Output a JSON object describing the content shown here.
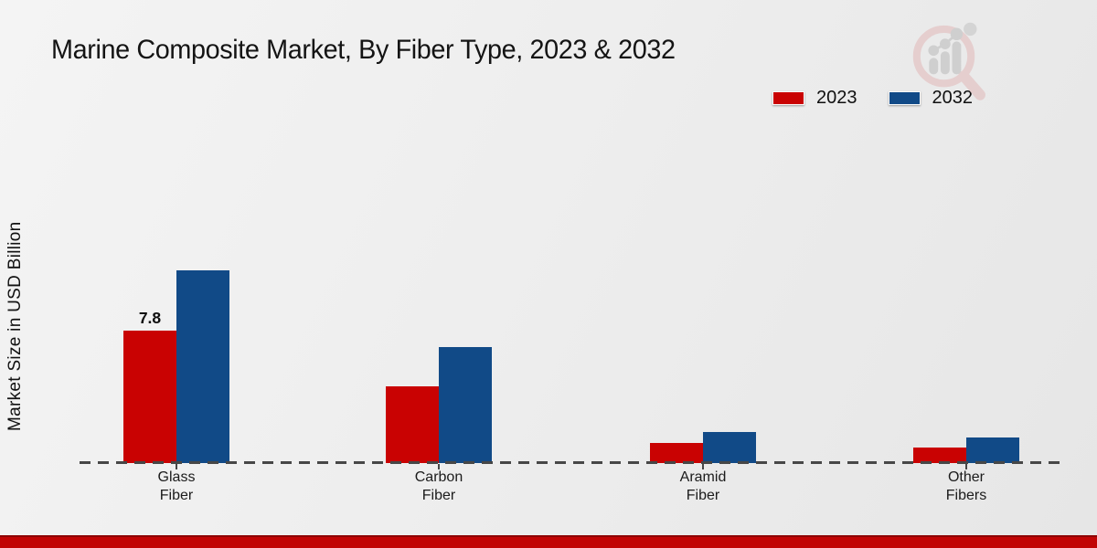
{
  "page": {
    "title": "Marine Composite Market, By Fiber Type, 2023 & 2032"
  },
  "chart_data": {
    "type": "bar",
    "title": "Marine Composite Market, By Fiber Type, 2023 & 2032",
    "xlabel": "",
    "ylabel": "Market Size in USD Billion",
    "ylim": [
      0,
      12
    ],
    "gridlines": false,
    "y_axis_ticks_visible": false,
    "baseline_style": "dashed",
    "legend_position": "top-right",
    "categories": [
      "Glass Fiber",
      "Carbon Fiber",
      "Aramid Fiber",
      "Other Fibers"
    ],
    "series": [
      {
        "name": "2023",
        "color": "#c90202",
        "values": [
          7.8,
          4.5,
          1.2,
          0.9
        ]
      },
      {
        "name": "2032",
        "color": "#114a87",
        "values": [
          11.3,
          6.8,
          1.8,
          1.5
        ]
      }
    ],
    "annotations": [
      {
        "series": "2023",
        "category": "Glass Fiber",
        "text": "7.8"
      }
    ]
  },
  "branding": {
    "logo_icon": "magnifier-bar-chart-watermark-icon",
    "footer_bar_color": "#c10404"
  }
}
